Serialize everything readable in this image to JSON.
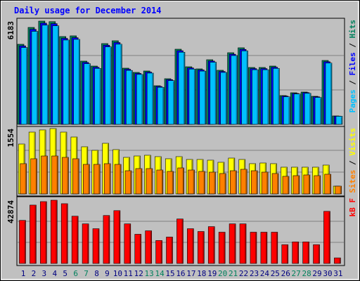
{
  "chart_data": [
    {
      "type": "bar",
      "title": "Daily usage for December 2014",
      "separator": " / ",
      "ylim": [
        0,
        6183
      ],
      "yticks": [
        6183
      ],
      "grid": true,
      "series": [
        {
          "name": "Hits",
          "color": "#00805c",
          "values": [
            4795,
            5804,
            6183,
            6150,
            5258,
            5300,
            3786,
            3491,
            4837,
            5005,
            3365,
            3112,
            3197,
            2313,
            2734,
            4500,
            3449,
            3323,
            3870,
            3239,
            4290,
            4585,
            3407,
            3407,
            3491,
            1724,
            1893,
            1935,
            1682,
            3827,
            505
          ]
        },
        {
          "name": "Files",
          "color": "#0000ff",
          "values": [
            4700,
            5690,
            6060,
            6030,
            5150,
            5190,
            3710,
            3420,
            4740,
            4900,
            3300,
            3050,
            3130,
            2270,
            2680,
            4410,
            3380,
            3260,
            3790,
            3170,
            4200,
            4490,
            3340,
            3340,
            3420,
            1690,
            1850,
            1900,
            1650,
            3750,
            495
          ]
        },
        {
          "name": "Pages",
          "color": "#00c0ff",
          "values": [
            4600,
            5570,
            5940,
            5900,
            5050,
            5090,
            3630,
            3350,
            4640,
            4800,
            3230,
            2990,
            3070,
            2220,
            2620,
            4320,
            3310,
            3190,
            3720,
            3110,
            4120,
            4400,
            3270,
            3270,
            3350,
            1650,
            1820,
            1860,
            1610,
            3670,
            485
          ]
        }
      ]
    },
    {
      "type": "bar",
      "separator": " / ",
      "ylim": [
        0,
        1554
      ],
      "yticks": [
        1554
      ],
      "grid": true,
      "series": [
        {
          "name": "Visits",
          "color": "#ffff00",
          "values": [
            1186,
            1470,
            1521,
            1554,
            1470,
            1353,
            1120,
            1036,
            1203,
            1053,
            869,
            902,
            919,
            886,
            836,
            886,
            819,
            819,
            802,
            752,
            852,
            819,
            719,
            735,
            719,
            635,
            635,
            635,
            635,
            685,
            184
          ]
        },
        {
          "name": "Sites",
          "color": "#ff8000",
          "values": [
            719,
            836,
            902,
            902,
            869,
            836,
            702,
            702,
            719,
            702,
            551,
            602,
            602,
            568,
            535,
            618,
            568,
            535,
            518,
            485,
            551,
            585,
            551,
            518,
            485,
            418,
            434,
            451,
            434,
            468,
            184
          ]
        }
      ]
    },
    {
      "type": "bar",
      "separator": " / ",
      "ylim": [
        0,
        42874
      ],
      "yticks": [
        42874
      ],
      "grid": true,
      "categories": [
        "1",
        "2",
        "3",
        "4",
        "5",
        "6",
        "7",
        "8",
        "9",
        "10",
        "11",
        "12",
        "13",
        "14",
        "15",
        "16",
        "17",
        "18",
        "19",
        "20",
        "21",
        "22",
        "23",
        "24",
        "25",
        "26",
        "27",
        "28",
        "29",
        "30",
        "31"
      ],
      "category_colors": [
        "#000080",
        "#000080",
        "#000080",
        "#000080",
        "#000080",
        "#00805c",
        "#00805c",
        "#000080",
        "#000080",
        "#000080",
        "#000080",
        "#000080",
        "#00805c",
        "#00805c",
        "#000080",
        "#000080",
        "#000080",
        "#000080",
        "#000080",
        "#00805c",
        "#00805c",
        "#000080",
        "#000080",
        "#000080",
        "#000080",
        "#000080",
        "#00805c",
        "#00805c",
        "#000080",
        "#000080",
        "#000080"
      ],
      "series": [
        {
          "name": "kB F",
          "color": "#ff0000",
          "values": [
            29200,
            39570,
            41930,
            42874,
            40520,
            32040,
            26850,
            23560,
            32510,
            35810,
            26850,
            19790,
            22140,
            15550,
            17900,
            30150,
            23560,
            21670,
            24970,
            21200,
            26850,
            26850,
            21200,
            21200,
            21200,
            12720,
            14610,
            14610,
            12720,
            35330,
            3770
          ]
        }
      ]
    }
  ]
}
